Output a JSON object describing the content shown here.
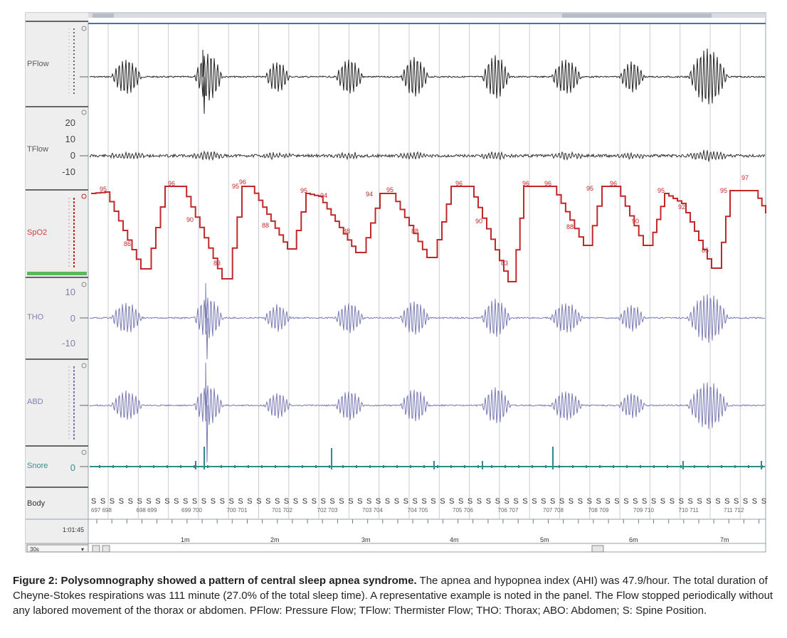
{
  "channels": [
    {
      "label": "PFlow",
      "color": "#5a5a5a",
      "scale": []
    },
    {
      "label": "TFlow",
      "color": "#5a5a5a",
      "scale": [
        "20",
        "10",
        "0",
        "-10"
      ]
    },
    {
      "label": "SpO2",
      "color": "#d33a3a",
      "scale": []
    },
    {
      "label": "THO",
      "color": "#7f7fb0",
      "scale": [
        "10",
        "0",
        "-10"
      ]
    },
    {
      "label": "ABD",
      "color": "#7f7fb0",
      "scale": []
    },
    {
      "label": "Snore",
      "color": "#3a8c8c",
      "scale": [
        "0"
      ]
    },
    {
      "label": "Body",
      "color": "#333333",
      "scale": []
    }
  ],
  "trace_colors": {
    "pflow": "#222222",
    "tflow": "#333333",
    "spo2": "#c0282a",
    "tho": "#7a7ab4",
    "abd": "#7a7ab4",
    "snore": "#2e8b8b"
  },
  "spo2_labels": [
    "95",
    "96",
    "95",
    "96",
    "95",
    "94",
    "94",
    "95",
    "96",
    "96",
    "96",
    "95",
    "96",
    "95",
    "95",
    "97",
    "88",
    "83",
    "88",
    "88",
    "88",
    "90",
    "90",
    "92",
    "85",
    "83",
    "90",
    "86"
  ],
  "body_position": "S",
  "epoch_labels": [
    "697 698",
    "698 699",
    "699 700",
    "700 701",
    "701 702",
    "702 703",
    "703 704",
    "704 705",
    "705 706",
    "706 707",
    "707 708",
    "708 709",
    "709 710",
    "710 711",
    "711 712"
  ],
  "time_start": "1:01:45",
  "minute_marks": [
    "1m",
    "2m",
    "3m",
    "4m",
    "5m",
    "6m",
    "7m"
  ],
  "bottom_select": "30s",
  "caption": {
    "title": "Figure 2: Polysomnography showed a pattern of central sleep apnea syndrome.",
    "body": "The apnea and hypopnea index (AHI) was 47.9/hour. The total duration of Cheyne-Stokes respirations was 111 minute (27.0% of the total sleep time). A representative example is noted in the panel. The Flow stopped periodically without any labored movement of the thorax or abdomen. PFlow: Pressure Flow; TFlow: Thermister Flow; THO: Thorax; ABO: Abdomen; S: Spine Position."
  }
}
